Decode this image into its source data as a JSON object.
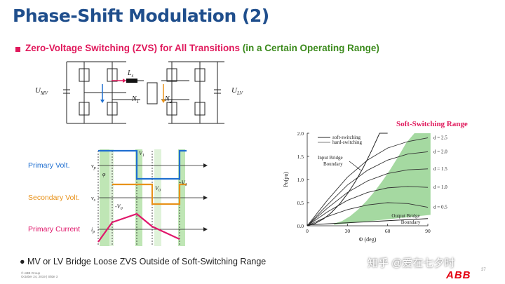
{
  "header": {
    "title": "Phase-Shift Modulation (2)",
    "subtitle_main": "Zero-Voltage Switching (ZVS) for All Transitions",
    "subtitle_range": "(in a Certain Operating Range)"
  },
  "circuit": {
    "u_mv": "U",
    "u_mv_sub": "MV",
    "u_lv": "U",
    "u_lv_sub": "LV",
    "ls": "L",
    "ls_sub": "s",
    "n1": "N",
    "n1_sub": "1",
    "n2": "N",
    "n2_sub": "2"
  },
  "waveforms": {
    "primary_volt": "Primary Volt.",
    "secondary_volt": "Secondary Volt.",
    "primary_current": "Primary Current",
    "vp": "v",
    "vp_sub": "p",
    "vs": "v",
    "vs_sub": "s",
    "ip": "i",
    "ip_sub": "p",
    "phi": "φ",
    "v1": "V",
    "v1_sub": "1",
    "mv1": "-V",
    "mv1_sub": "1",
    "v0a": "V",
    "v0a_sub": "0",
    "v0b": "-V",
    "v0b_sub": "0",
    "colors": {
      "primary": "#1f6fd0",
      "secondary": "#e8921a",
      "current": "#e0186b",
      "zvs_band": "#bfe6b5"
    }
  },
  "chart_data": {
    "type": "line",
    "title": "Soft-Switching Range",
    "xlabel": "Φ (deg)",
    "ylabel": "Po(pu)",
    "xlim": [
      0,
      90
    ],
    "ylim": [
      0,
      2.0
    ],
    "xticks": [
      "0",
      "30",
      "60",
      "90"
    ],
    "yticks": [
      "0.0",
      "0.5",
      "1.0",
      "1.5",
      "2.0"
    ],
    "legend": [
      "soft-switching",
      "hard-switching"
    ],
    "annotations": [
      "Input Bridge Boundary",
      "Output Bridge Boundary"
    ],
    "series": [
      {
        "name": "d = 0.5",
        "x": [
          0,
          15,
          30,
          45,
          60,
          75,
          90
        ],
        "y": [
          0,
          0.2,
          0.35,
          0.45,
          0.5,
          0.48,
          0.4
        ]
      },
      {
        "name": "d = 1.0",
        "x": [
          0,
          15,
          30,
          45,
          60,
          75,
          90
        ],
        "y": [
          0,
          0.3,
          0.55,
          0.72,
          0.82,
          0.85,
          0.83
        ]
      },
      {
        "name": "d = 1.5",
        "x": [
          0,
          15,
          30,
          45,
          60,
          75,
          90
        ],
        "y": [
          0,
          0.38,
          0.72,
          0.97,
          1.13,
          1.21,
          1.23
        ]
      },
      {
        "name": "d = 2.0",
        "x": [
          0,
          15,
          30,
          45,
          60,
          75,
          90
        ],
        "y": [
          0,
          0.45,
          0.88,
          1.2,
          1.42,
          1.55,
          1.6
        ]
      },
      {
        "name": "d = 2.5",
        "x": [
          0,
          15,
          30,
          45,
          60,
          75,
          90
        ],
        "y": [
          0,
          0.55,
          1.05,
          1.42,
          1.68,
          1.82,
          1.9
        ]
      }
    ],
    "grid": false
  },
  "bullet": "MV or LV Bridge Loose ZVS Outside of Soft-Switching Range",
  "footer": {
    "line1": "© ABB Group",
    "line2": "October 24, 2019 | Slide 3"
  },
  "brand": {
    "logo": "ABB",
    "page": "37"
  },
  "watermark": "知乎 @爱在七夕时"
}
